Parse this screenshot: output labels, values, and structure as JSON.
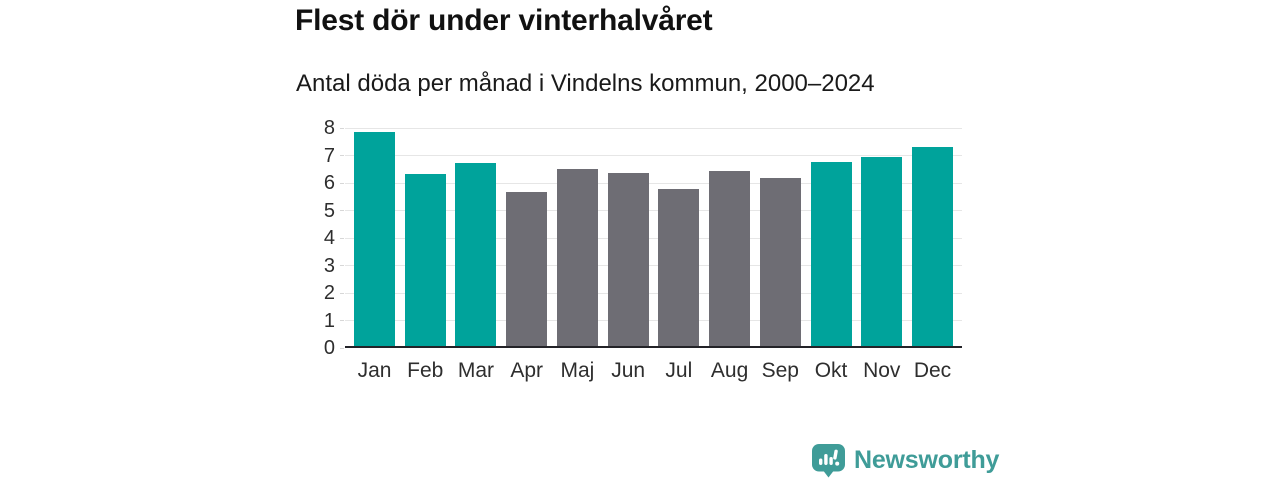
{
  "header": {
    "title": "Flest dör under vinterhalvåret",
    "subtitle": "Antal döda per månad i Vindelns kommun, 2000–2024"
  },
  "chart_data": {
    "type": "bar",
    "title": "Flest dör under vinterhalvåret",
    "subtitle": "Antal döda per månad i Vindelns kommun, 2000–2024",
    "categories": [
      "Jan",
      "Feb",
      "Mar",
      "Apr",
      "Maj",
      "Jun",
      "Jul",
      "Aug",
      "Sep",
      "Okt",
      "Nov",
      "Dec"
    ],
    "values": [
      7.8,
      6.24,
      6.64,
      5.6,
      6.44,
      6.28,
      5.72,
      6.36,
      6.12,
      6.68,
      6.88,
      7.24
    ],
    "bar_colors": [
      "#00a39b",
      "#00a39b",
      "#00a39b",
      "#6e6d74",
      "#6e6d74",
      "#6e6d74",
      "#6e6d74",
      "#6e6d74",
      "#6e6d74",
      "#00a39b",
      "#00a39b",
      "#00a39b"
    ],
    "color_meaning": {
      "winter_half_year": "#00a39b",
      "summer_half_year": "#6e6d74"
    },
    "xlabel": "",
    "ylabel": "",
    "ylim": [
      0,
      8
    ],
    "yticks": [
      0,
      1,
      2,
      3,
      4,
      5,
      6,
      7,
      8
    ],
    "grid": "horizontal-light",
    "legend": "none"
  },
  "footer": {
    "brand": "Newsworthy",
    "brand_color": "#3f9c98"
  }
}
